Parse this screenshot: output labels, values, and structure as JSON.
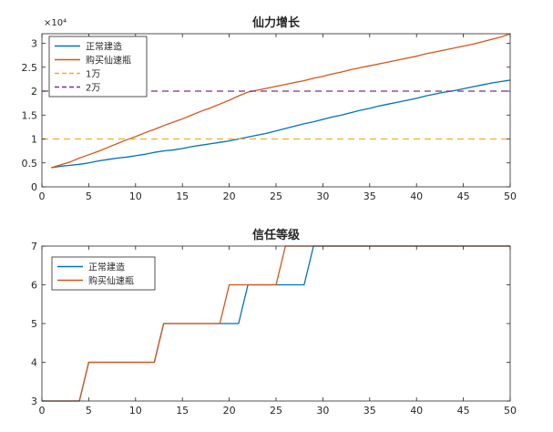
{
  "chart_data": [
    {
      "type": "line",
      "title": "仙力增长",
      "exponent_label": "×10⁴",
      "xlim": [
        0,
        50
      ],
      "ylim": [
        0,
        3.2
      ],
      "xticks": [
        0,
        5,
        10,
        15,
        20,
        25,
        30,
        35,
        40,
        45,
        50
      ],
      "yticks": [
        0,
        0.5,
        1,
        1.5,
        2,
        2.5,
        3
      ],
      "ytick_labels": [
        "0",
        "0.5",
        "1",
        "1.5",
        "2",
        "2.5",
        "3"
      ],
      "grid": false,
      "legend_position": "top-left",
      "series": [
        {
          "name": "正常建造",
          "color": "#0072bd",
          "dash": "",
          "x": [
            1,
            2,
            3,
            4,
            5,
            6,
            7,
            8,
            9,
            10,
            11,
            12,
            13,
            14,
            15,
            16,
            17,
            18,
            19,
            20,
            21,
            22,
            23,
            24,
            25,
            26,
            27,
            28,
            29,
            30,
            31,
            32,
            33,
            34,
            35,
            36,
            37,
            38,
            39,
            40,
            41,
            42,
            43,
            44,
            45,
            46,
            47,
            48,
            49,
            50
          ],
          "y": [
            0.4,
            0.43,
            0.45,
            0.47,
            0.5,
            0.54,
            0.57,
            0.6,
            0.62,
            0.65,
            0.68,
            0.72,
            0.75,
            0.77,
            0.8,
            0.84,
            0.87,
            0.9,
            0.93,
            0.96,
            1.0,
            1.04,
            1.08,
            1.12,
            1.17,
            1.22,
            1.27,
            1.32,
            1.36,
            1.41,
            1.46,
            1.5,
            1.55,
            1.6,
            1.64,
            1.69,
            1.73,
            1.77,
            1.81,
            1.85,
            1.9,
            1.94,
            1.98,
            2.01,
            2.05,
            2.09,
            2.13,
            2.17,
            2.2,
            2.23
          ]
        },
        {
          "name": "购买仙速瓶",
          "color": "#d95319",
          "dash": "",
          "x": [
            1,
            2,
            3,
            4,
            5,
            6,
            7,
            8,
            9,
            10,
            11,
            12,
            13,
            14,
            15,
            16,
            17,
            18,
            19,
            20,
            21,
            22,
            23,
            24,
            25,
            26,
            27,
            28,
            29,
            30,
            31,
            32,
            33,
            34,
            35,
            36,
            37,
            38,
            39,
            40,
            41,
            42,
            43,
            44,
            45,
            46,
            47,
            48,
            49,
            50
          ],
          "y": [
            0.4,
            0.46,
            0.52,
            0.6,
            0.67,
            0.74,
            0.82,
            0.9,
            0.98,
            1.05,
            1.13,
            1.2,
            1.28,
            1.35,
            1.42,
            1.5,
            1.58,
            1.65,
            1.73,
            1.81,
            1.9,
            1.98,
            2.02,
            2.06,
            2.1,
            2.14,
            2.18,
            2.22,
            2.27,
            2.31,
            2.36,
            2.4,
            2.45,
            2.49,
            2.53,
            2.57,
            2.61,
            2.65,
            2.69,
            2.73,
            2.78,
            2.82,
            2.86,
            2.9,
            2.94,
            2.98,
            3.03,
            3.08,
            3.13,
            3.2
          ]
        },
        {
          "name": "1万",
          "color": "#edb120",
          "dash": "7,5",
          "x": [
            0,
            50
          ],
          "y": [
            1,
            1
          ]
        },
        {
          "name": "2万",
          "color": "#7e2f8e",
          "dash": "7,5",
          "x": [
            0,
            50
          ],
          "y": [
            2,
            2
          ]
        }
      ]
    },
    {
      "type": "line",
      "title": "信任等级",
      "xlim": [
        0,
        50
      ],
      "ylim": [
        3,
        7
      ],
      "xticks": [
        0,
        5,
        10,
        15,
        20,
        25,
        30,
        35,
        40,
        45,
        50
      ],
      "yticks": [
        3,
        4,
        5,
        6,
        7
      ],
      "ytick_labels": [
        "3",
        "4",
        "5",
        "6",
        "7"
      ],
      "grid": false,
      "legend_position": "top-left",
      "series": [
        {
          "name": "正常建造",
          "color": "#0072bd",
          "dash": "",
          "x": [
            0,
            4,
            5,
            12,
            13,
            21,
            22,
            28,
            29,
            50
          ],
          "y": [
            3,
            3,
            4,
            4,
            5,
            5,
            6,
            6,
            7,
            7
          ]
        },
        {
          "name": "购买仙速瓶",
          "color": "#d95319",
          "dash": "",
          "x": [
            0,
            4,
            5,
            12,
            13,
            19,
            20,
            25,
            26,
            50
          ],
          "y": [
            3,
            3,
            4,
            4,
            5,
            5,
            6,
            6,
            7,
            7
          ]
        }
      ]
    }
  ]
}
